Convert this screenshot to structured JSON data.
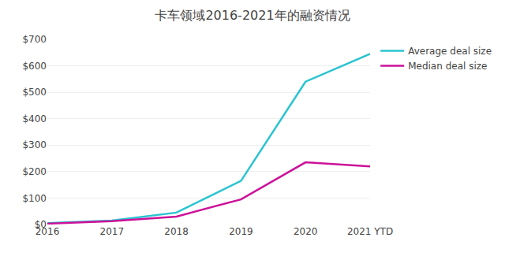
{
  "chart_data": {
    "type": "line",
    "title": "卡车领域2016-2021年的融资情况",
    "categories": [
      "2016",
      "2017",
      "2018",
      "2019",
      "2020",
      "2021 YTD"
    ],
    "series": [
      {
        "name": "Average deal size",
        "color": "#29C4D0",
        "values": [
          5,
          15,
          45,
          165,
          540,
          645
        ]
      },
      {
        "name": "Median deal size",
        "color": "#CC1199",
        "values": [
          3,
          13,
          30,
          95,
          235,
          220
        ]
      }
    ],
    "ylim": [
      0,
      700
    ],
    "yticks": [
      {
        "value": 0,
        "label": "$0"
      },
      {
        "value": 100,
        "label": "$100"
      },
      {
        "value": 200,
        "label": "$200"
      },
      {
        "value": 300,
        "label": "$300"
      },
      {
        "value": 400,
        "label": "$400"
      },
      {
        "value": 500,
        "label": "$500"
      },
      {
        "value": 600,
        "label": "$600"
      },
      {
        "value": 700,
        "label": "$700"
      }
    ],
    "grid": true,
    "legend": "upper right"
  }
}
